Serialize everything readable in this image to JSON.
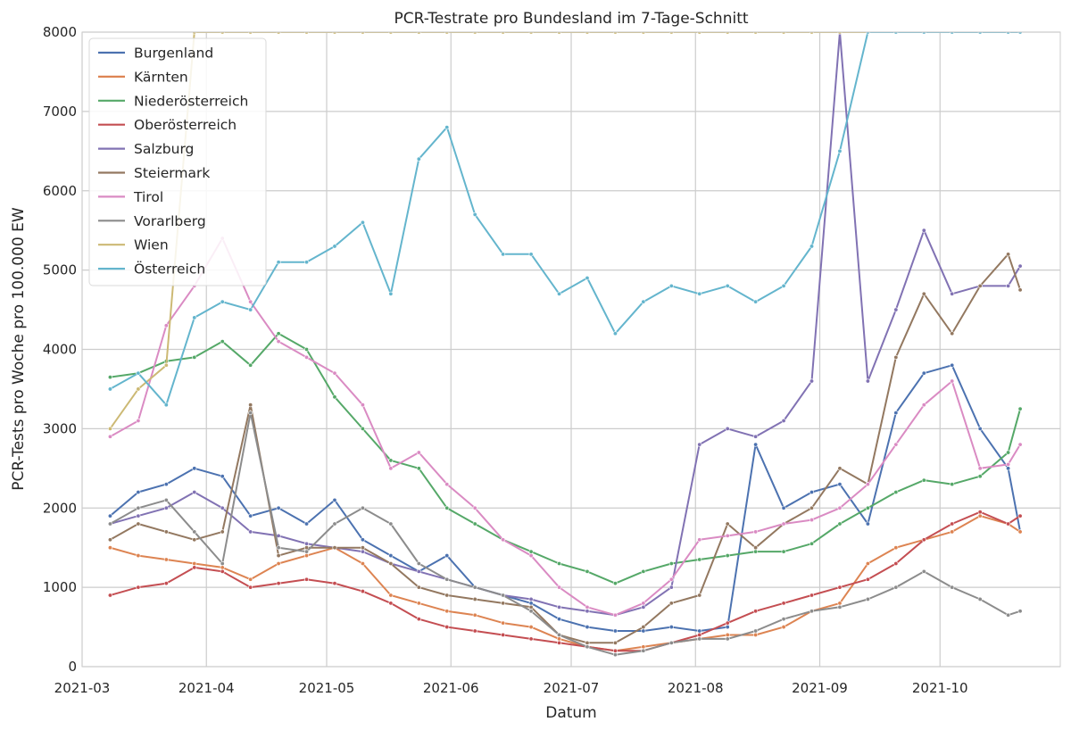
{
  "chart_data": {
    "type": "line",
    "title": "PCR-Testrate pro Bundesland im 7-Tage-Schnitt",
    "xlabel": "Datum",
    "ylabel": "PCR-Tests pro Woche pro 100.000 EW",
    "xlim": [
      "2021-03-01",
      "2021-10-31"
    ],
    "ylim": [
      0,
      8000
    ],
    "x_ticks": [
      "2021-03",
      "2021-04",
      "2021-05",
      "2021-06",
      "2021-07",
      "2021-08",
      "2021-09",
      "2021-10"
    ],
    "y_ticks": [
      0,
      1000,
      2000,
      3000,
      4000,
      5000,
      6000,
      7000,
      8000
    ],
    "grid": true,
    "legend_position": "top-left",
    "x_dates": [
      "2021-03-08",
      "2021-03-15",
      "2021-03-22",
      "2021-03-29",
      "2021-04-05",
      "2021-04-12",
      "2021-04-19",
      "2021-04-26",
      "2021-05-03",
      "2021-05-10",
      "2021-05-17",
      "2021-05-24",
      "2021-05-31",
      "2021-06-07",
      "2021-06-14",
      "2021-06-21",
      "2021-06-28",
      "2021-07-05",
      "2021-07-12",
      "2021-07-19",
      "2021-07-26",
      "2021-08-02",
      "2021-08-09",
      "2021-08-16",
      "2021-08-23",
      "2021-08-30",
      "2021-09-06",
      "2021-09-13",
      "2021-09-20",
      "2021-09-27",
      "2021-10-04",
      "2021-10-11",
      "2021-10-18",
      "2021-10-21"
    ],
    "series": [
      {
        "name": "Burgenland",
        "color": "#4c72b0",
        "values": [
          1900,
          2200,
          2300,
          2500,
          2400,
          1900,
          2000,
          1800,
          2100,
          1600,
          1400,
          1200,
          1400,
          1000,
          900,
          800,
          600,
          500,
          450,
          450,
          500,
          450,
          500,
          2800,
          2000,
          2200,
          2300,
          1800,
          3200,
          3700,
          3800,
          3000,
          2500,
          1700
        ]
      },
      {
        "name": "Kärnten",
        "color": "#dd8452",
        "values": [
          1500,
          1400,
          1350,
          1300,
          1250,
          1100,
          1300,
          1400,
          1500,
          1300,
          900,
          800,
          700,
          650,
          550,
          500,
          350,
          250,
          200,
          250,
          300,
          350,
          400,
          400,
          500,
          700,
          800,
          1300,
          1500,
          1600,
          1700,
          1900,
          1800,
          1700
        ]
      },
      {
        "name": "Niederösterreich",
        "color": "#55a868",
        "values": [
          3650,
          3700,
          3850,
          3900,
          4100,
          3800,
          4200,
          4000,
          3400,
          3000,
          2600,
          2500,
          2000,
          1800,
          1600,
          1450,
          1300,
          1200,
          1050,
          1200,
          1300,
          1350,
          1400,
          1450,
          1450,
          1550,
          1800,
          2000,
          2200,
          2350,
          2300,
          2400,
          2700,
          3250
        ]
      },
      {
        "name": "Oberösterreich",
        "color": "#c44e52",
        "values": [
          900,
          1000,
          1050,
          1250,
          1200,
          1000,
          1050,
          1100,
          1050,
          950,
          800,
          600,
          500,
          450,
          400,
          350,
          300,
          250,
          200,
          200,
          300,
          400,
          550,
          700,
          800,
          900,
          1000,
          1100,
          1300,
          1600,
          1800,
          1950,
          1800,
          1900
        ]
      },
      {
        "name": "Salzburg",
        "color": "#8172b3",
        "values": [
          1800,
          1900,
          2000,
          2200,
          2000,
          1700,
          1650,
          1550,
          1500,
          1450,
          1300,
          1200,
          1100,
          1000,
          900,
          850,
          750,
          700,
          650,
          750,
          1000,
          2800,
          3000,
          2900,
          3100,
          3600,
          8000,
          3600,
          4500,
          5500,
          4700,
          4800,
          4800,
          5050
        ]
      },
      {
        "name": "Steiermark",
        "color": "#937860",
        "values": [
          1600,
          1800,
          1700,
          1600,
          1700,
          3300,
          1400,
          1500,
          1500,
          1500,
          1300,
          1000,
          900,
          850,
          800,
          750,
          400,
          300,
          300,
          500,
          800,
          900,
          1800,
          1500,
          1800,
          2000,
          2500,
          2300,
          3900,
          4700,
          4200,
          4800,
          5200,
          4750
        ]
      },
      {
        "name": "Tirol",
        "color": "#da8bc3",
        "values": [
          2900,
          3100,
          4300,
          4800,
          5400,
          4600,
          4100,
          3900,
          3700,
          3300,
          2500,
          2700,
          2300,
          2000,
          1600,
          1400,
          1000,
          750,
          650,
          800,
          1100,
          1600,
          1650,
          1700,
          1800,
          1850,
          2000,
          2300,
          2800,
          3300,
          3600,
          2500,
          2550,
          2800
        ]
      },
      {
        "name": "Vorarlberg",
        "color": "#8c8c8c",
        "values": [
          1800,
          2000,
          2100,
          1700,
          1300,
          3200,
          1500,
          1450,
          1800,
          2000,
          1800,
          1300,
          1100,
          1000,
          900,
          700,
          400,
          250,
          150,
          200,
          300,
          350,
          350,
          450,
          600,
          700,
          750,
          850,
          1000,
          1200,
          1000,
          850,
          650,
          700
        ]
      },
      {
        "name": "Wien",
        "color": "#ccb974",
        "values": [
          3000,
          3500,
          3800,
          8000,
          8000,
          8000,
          8000,
          8000,
          8000,
          8000,
          8000,
          8000,
          8000,
          8000,
          8000,
          8000,
          8000,
          8000,
          8000,
          8000,
          8000,
          8000,
          8000,
          8000,
          8000,
          8000,
          8000,
          8000,
          8000,
          8000,
          8000,
          8000,
          8000,
          8000
        ]
      },
      {
        "name": "Österreich",
        "color": "#64b5cd",
        "values": [
          3500,
          3700,
          3300,
          4400,
          4600,
          4500,
          5100,
          5100,
          5300,
          5600,
          4700,
          6400,
          6800,
          5700,
          5200,
          5200,
          4700,
          4900,
          4200,
          4600,
          4800,
          4700,
          4800,
          4600,
          4800,
          5300,
          6500,
          8000,
          8000,
          8000,
          8000,
          8000,
          8000,
          8000
        ]
      }
    ]
  }
}
